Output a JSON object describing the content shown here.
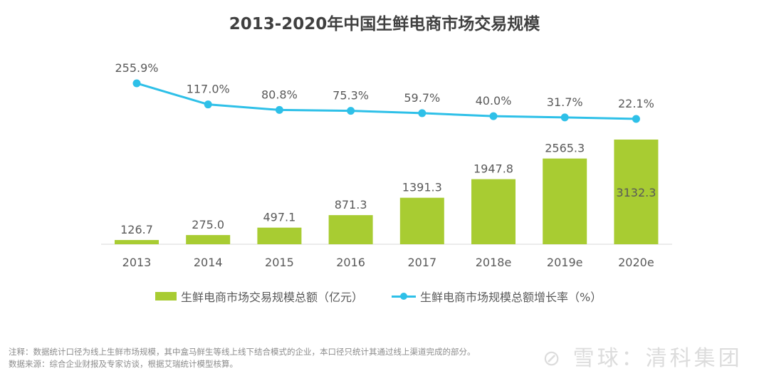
{
  "chart_data": {
    "type": "bar+line",
    "title": "2013-2020年中国生鲜电商市场交易规模",
    "categories": [
      "2013",
      "2014",
      "2015",
      "2016",
      "2017",
      "2018e",
      "2019e",
      "2020e"
    ],
    "series": [
      {
        "name": "生鲜电商市场交易规模总额（亿元）",
        "type": "bar",
        "color": "#a8cc32",
        "values": [
          126.7,
          275.0,
          497.1,
          871.3,
          1391.3,
          1947.8,
          2565.3,
          3132.3
        ],
        "labels": [
          "126.7",
          "275.0",
          "497.1",
          "871.3",
          "1391.3",
          "1947.8",
          "2565.3",
          "3132.3"
        ]
      },
      {
        "name": "生鲜电商市场规模总额增长率（%）",
        "type": "line",
        "color": "#2ec0e8",
        "values": [
          255.9,
          117.0,
          80.8,
          75.3,
          59.7,
          40.0,
          31.7,
          22.1
        ],
        "labels": [
          "255.9%",
          "117.0%",
          "80.8%",
          "75.3%",
          "59.7%",
          "40.0%",
          "31.7%",
          "22.1%"
        ]
      }
    ],
    "legend_position": "bottom",
    "grid": false
  },
  "notes": {
    "line1": "注释：数据统计口径为线上生鲜市场规模，其中盒马鲜生等线上线下结合模式的企业，本口径只统计其通过线上渠道完成的部分。",
    "line2": "数据来源：综合企业财报及专家访谈，根据艾瑞统计模型核算。"
  },
  "watermark": "雪球：清科集团"
}
